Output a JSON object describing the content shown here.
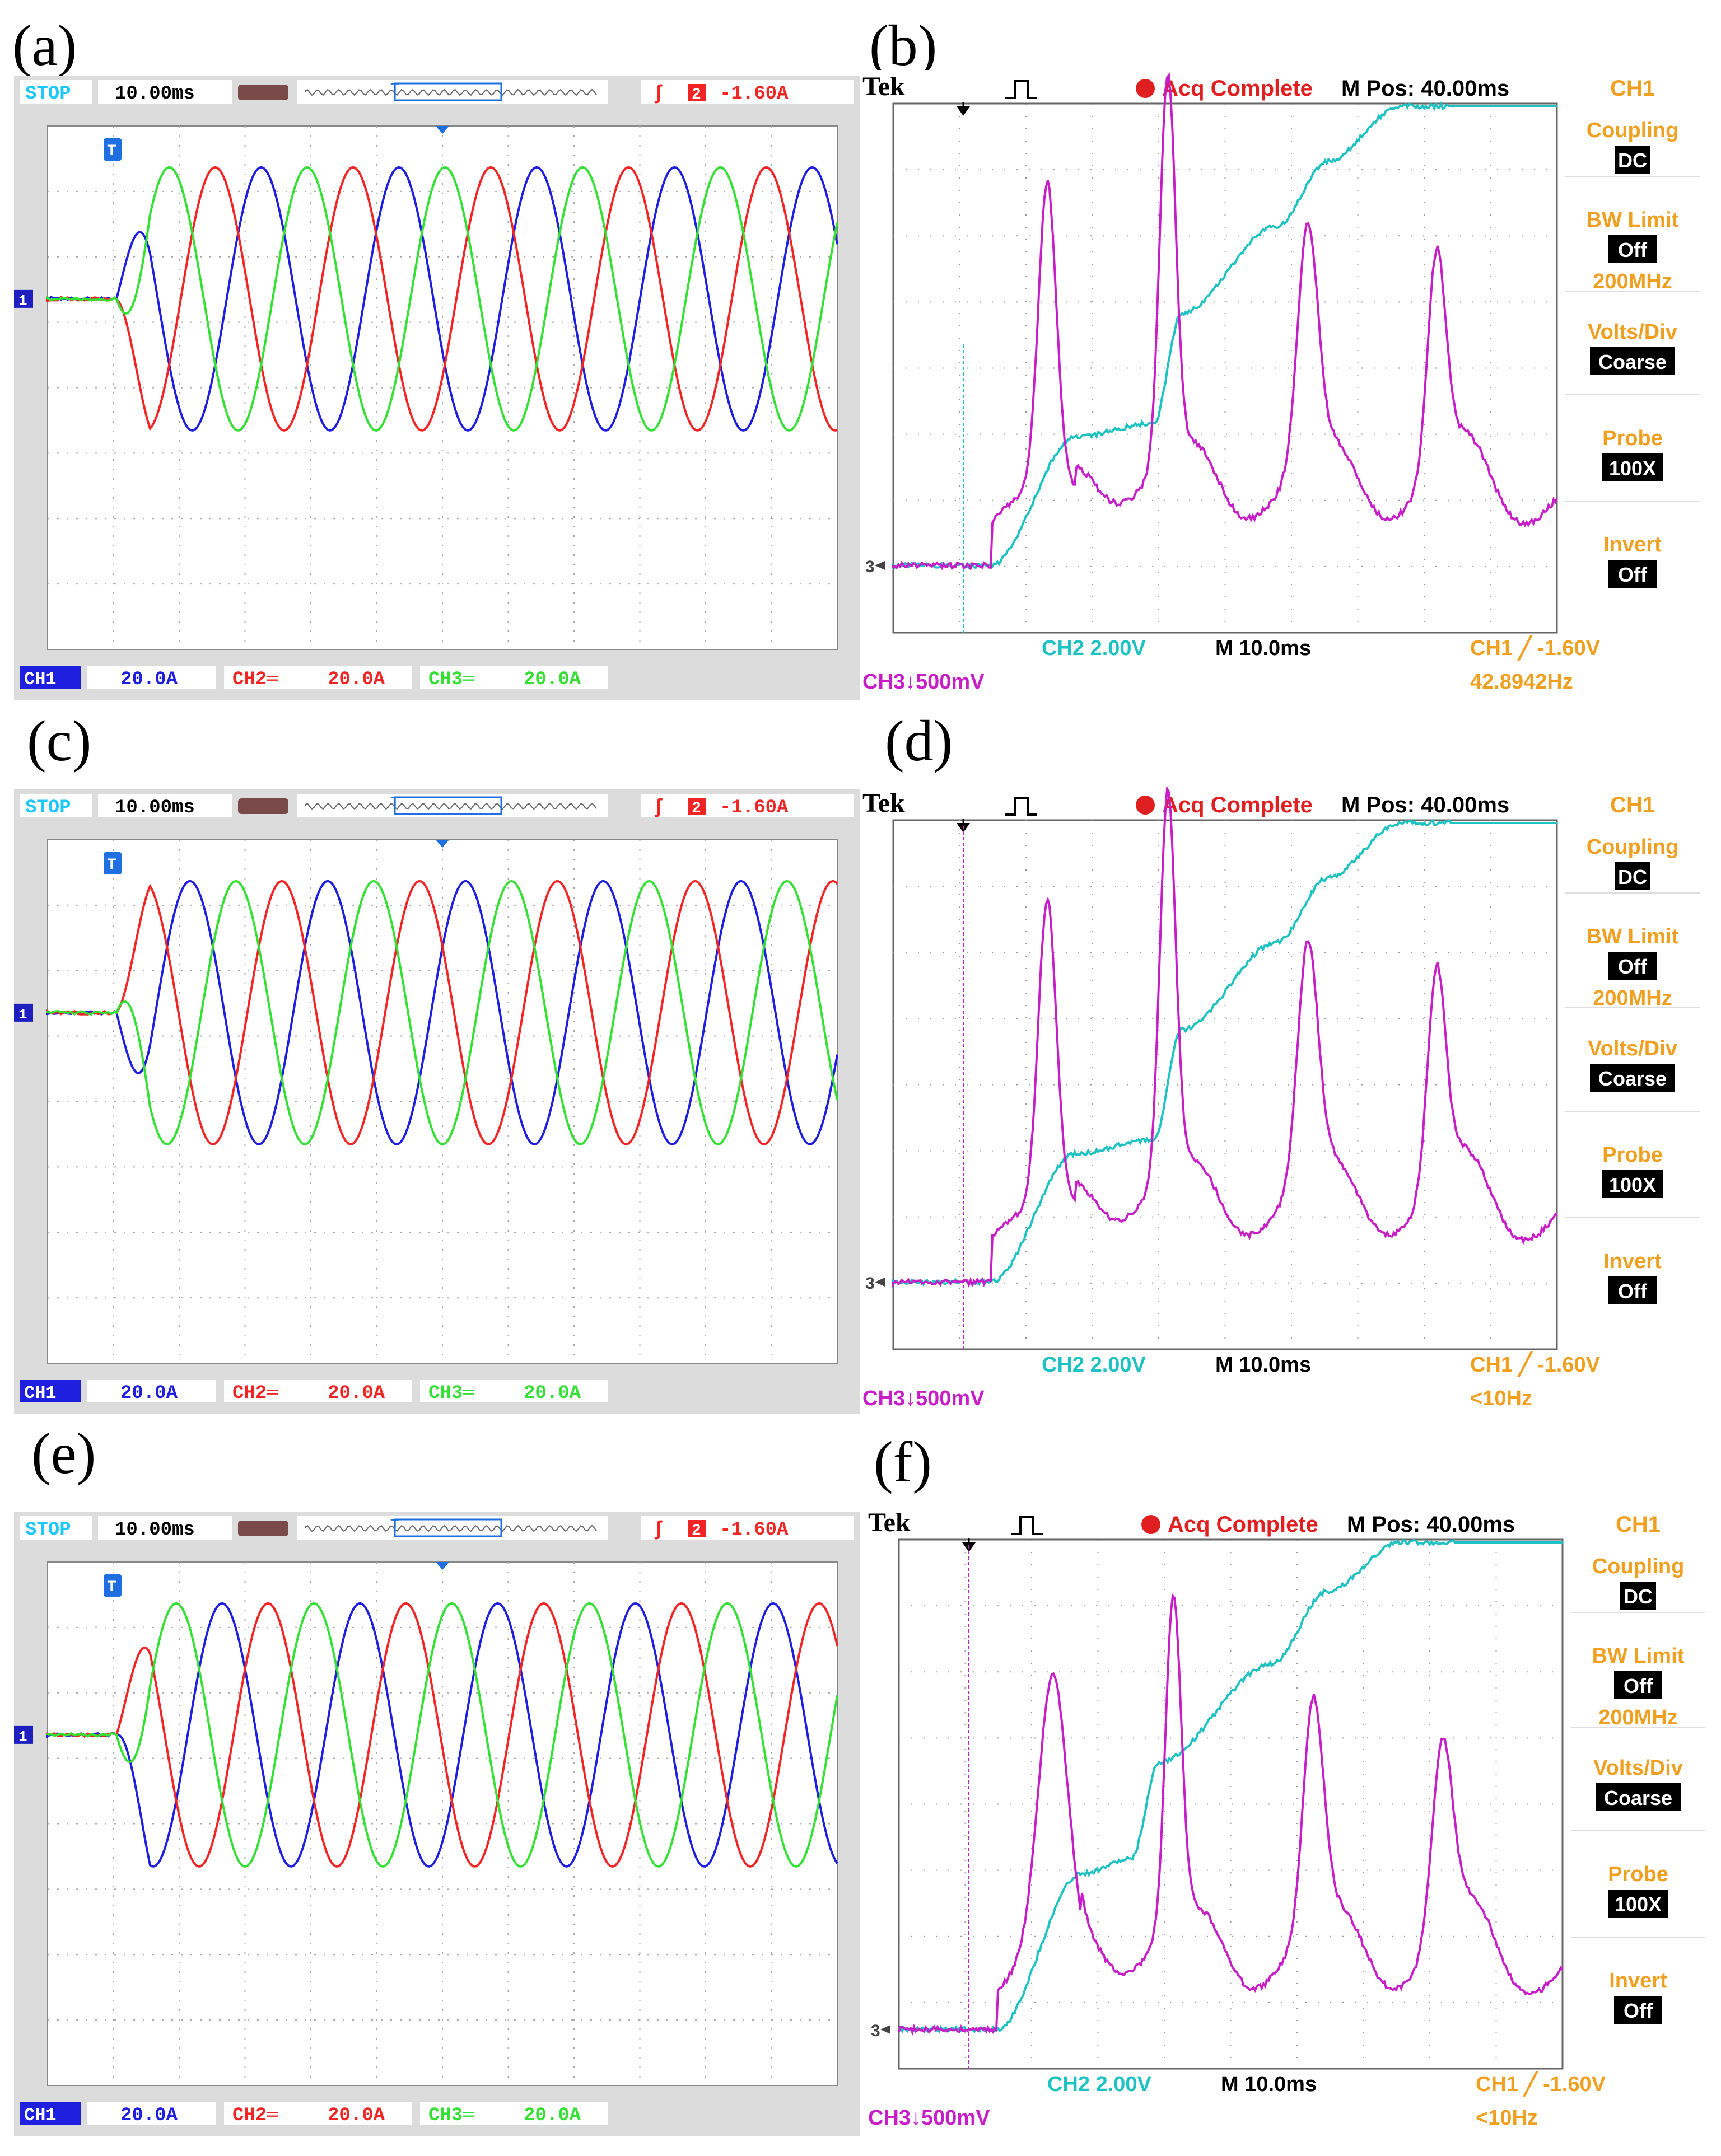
{
  "colors": {
    "rigol_bg": "#dcdcdc",
    "rigol_screen": "#ffffff",
    "rigol_grid": "#a8a8a8",
    "ch1_blue": "#1f1fe0",
    "ch2_red": "#f22424",
    "ch3_green": "#34e034",
    "stop_cyan": "#1ec8ff",
    "tek_screen": "#ffffff",
    "tek_sidebar": "#ffffff",
    "tek_cyan": "#1fc2c2",
    "tek_magenta": "#c81ec8",
    "tek_orange": "#f0a020",
    "tek_red": "#e02020"
  },
  "rigol": {
    "stop": "STOP",
    "timebase": "10.00ms",
    "trigger_level": "-1.60A",
    "trigger_channel": "2",
    "trigger_marker": "T",
    "ch1_marker": "1",
    "ch1_label": "CH1",
    "ch2_label": "CH2",
    "ch3_label": "CH3",
    "ch1_scale": "20.0A",
    "ch2_scale": "20.0A",
    "ch3_scale": "20.0A"
  },
  "tek": {
    "brand": "Tek",
    "acq_status": "Acq Complete",
    "mpos": "M Pos: 40.00ms",
    "side_title": "CH1",
    "coupling_label": "Coupling",
    "coupling_value": "DC",
    "bw_label": "BW Limit",
    "bw_value": "Off",
    "bw_freq": "200MHz",
    "volts_label": "Volts/Div",
    "volts_value": "Coarse",
    "probe_label": "Probe",
    "probe_value": "100X",
    "invert_label": "Invert",
    "invert_value": "Off",
    "ch2_scale": "CH2  2.00V",
    "m_time": "M 10.0ms",
    "trigger": "CH1 ╱ -1.60V",
    "ch3_scale": "CH3↓500mV",
    "ch3_marker": "3"
  },
  "panels": [
    {
      "label": "(a)"
    },
    {
      "label": "(b)",
      "freq": "42.8942Hz"
    },
    {
      "label": "(c)"
    },
    {
      "label": "(d)",
      "freq": "<10Hz"
    },
    {
      "label": "(e)"
    },
    {
      "label": "(f)",
      "freq": "<10Hz"
    }
  ]
}
